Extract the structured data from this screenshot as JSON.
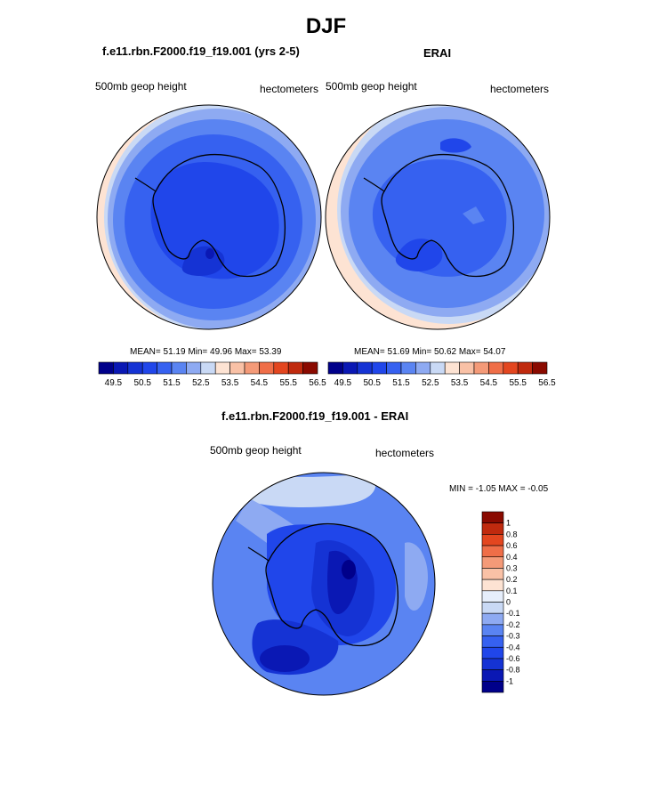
{
  "title": "DJF",
  "panels": {
    "left": {
      "title": "f.e11.rbn.F2000.f19_f19.001 (yrs 2-5)",
      "variable": "500mb geop height",
      "units": "hectometers",
      "stats": "MEAN=  51.19  Min=  49.96  Max=  53.39"
    },
    "right": {
      "title": "ERAI",
      "variable": "500mb geop height",
      "units": "hectometers",
      "stats": "MEAN=  51.69  Min=  50.62  Max=  54.07"
    },
    "diff": {
      "title": "f.e11.rbn.F2000.f19_f19.001 - ERAI",
      "variable": "500mb geop height",
      "units": "hectometers",
      "minmax": "MIN =  -1.05 MAX =  -0.05"
    }
  },
  "colorbar_main": {
    "labels": [
      "49.5",
      "50.5",
      "51.5",
      "52.5",
      "53.5",
      "54.5",
      "55.5",
      "56.5"
    ],
    "colors": [
      "#00008a",
      "#0a18b4",
      "#1533d4",
      "#2046ea",
      "#3661f0",
      "#5a84f2",
      "#8eaaf2",
      "#c9d9f5",
      "#fde3d3",
      "#f9c1a6",
      "#f49a78",
      "#ef6e48",
      "#e3461f",
      "#c02a0e",
      "#8a0a00"
    ]
  },
  "colorbar_diff": {
    "labels": [
      "1",
      "0.8",
      "0.6",
      "0.4",
      "0.3",
      "0.2",
      "0.1",
      "0",
      "-0.1",
      "-0.2",
      "-0.3",
      "-0.4",
      "-0.6",
      "-0.8",
      "-1"
    ],
    "colors": [
      "#8a0a00",
      "#c02a0e",
      "#e3461f",
      "#ef6e48",
      "#f49a78",
      "#f9c1a6",
      "#fde3d3",
      "#e6eefb",
      "#c9d9f5",
      "#8eaaf2",
      "#5a84f2",
      "#3661f0",
      "#2046ea",
      "#1533d4",
      "#0a18b4",
      "#00008a"
    ]
  }
}
